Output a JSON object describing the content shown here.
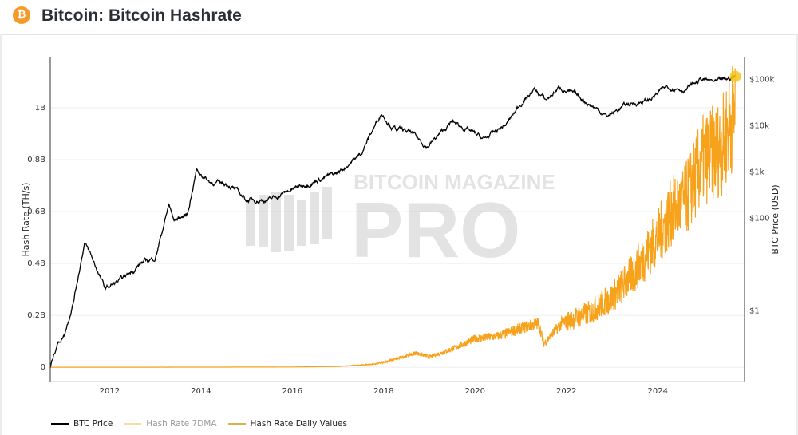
{
  "header": {
    "title": "Bitcoin: Bitcoin Hashrate",
    "logo_icon": "bitcoin-icon",
    "logo_color": "#f39a2b"
  },
  "watermark": {
    "line1": "BITCOIN MAGAZINE",
    "line2": "PRO"
  },
  "chart_data": {
    "type": "line",
    "title": "Bitcoin: Bitcoin Hashrate",
    "xlabel": "",
    "ylabel_left": "Hash Rate (TH/s)",
    "ylabel_right": "BTC Price (USD)",
    "x_ticks": [
      "2012",
      "2014",
      "2016",
      "2018",
      "2020",
      "2022",
      "2024"
    ],
    "x_range": [
      2010.7,
      2025.9
    ],
    "y_left_ticks": [
      "0",
      "0.2B",
      "0.4B",
      "0.6B",
      "0.8B",
      "1B"
    ],
    "y_left_tick_values": [
      0,
      200000000,
      400000000,
      600000000,
      800000000,
      1000000000
    ],
    "y_left_range": [
      -55000000,
      1194000000
    ],
    "y_right_scale": "log",
    "y_right_ticks": [
      "$1",
      "$100",
      "$1k",
      "$10k",
      "$100k"
    ],
    "y_right_tick_values": [
      1,
      100,
      1000,
      10000,
      100000
    ],
    "y_right_range": [
      0.03,
      295000
    ],
    "grid": true,
    "legend_position": "bottom-left",
    "series": [
      {
        "name": "BTC Price",
        "axis": "right",
        "color": "#000000",
        "x": [
          2010.7,
          2010.85,
          2011.0,
          2011.2,
          2011.45,
          2011.6,
          2011.9,
          2012.3,
          2012.7,
          2013.0,
          2013.3,
          2013.4,
          2013.7,
          2013.9,
          2014.2,
          2014.6,
          2015.0,
          2015.5,
          2016.0,
          2016.5,
          2017.0,
          2017.5,
          2017.95,
          2018.2,
          2018.6,
          2018.95,
          2019.5,
          2019.9,
          2020.2,
          2020.7,
          2021.0,
          2021.3,
          2021.55,
          2021.85,
          2022.3,
          2022.9,
          2023.3,
          2023.8,
          2024.2,
          2024.6,
          2024.95,
          2025.3,
          2025.7
        ],
        "values": [
          0.06,
          0.2,
          0.3,
          1.5,
          30,
          15,
          3,
          5,
          11,
          14,
          200,
          90,
          120,
          1100,
          600,
          550,
          250,
          250,
          420,
          650,
          950,
          2500,
          19000,
          9000,
          7000,
          3500,
          12000,
          7500,
          5000,
          11000,
          30000,
          60000,
          35000,
          67000,
          40000,
          16000,
          28000,
          35000,
          70000,
          60000,
          100000,
          85000,
          115000
        ]
      },
      {
        "name": "Hash Rate 7DMA",
        "axis": "left",
        "color": "#f5dfa0",
        "x": [],
        "values": []
      },
      {
        "name": "Hash Rate Daily Values",
        "axis": "left",
        "color": "#f7a21b",
        "x": [
          2010.7,
          2014.0,
          2016.0,
          2017.0,
          2017.8,
          2018.2,
          2018.7,
          2019.0,
          2019.5,
          2020.0,
          2020.5,
          2021.0,
          2021.4,
          2021.5,
          2021.9,
          2022.5,
          2023.0,
          2023.5,
          2024.0,
          2024.3,
          2024.6,
          2025.0,
          2025.4,
          2025.7
        ],
        "values": [
          0,
          300000,
          1000000,
          3000000,
          12000000,
          28000000,
          55000000,
          40000000,
          70000000,
          110000000,
          120000000,
          150000000,
          170000000,
          90000000,
          170000000,
          210000000,
          270000000,
          370000000,
          500000000,
          600000000,
          640000000,
          800000000,
          850000000,
          1000000000
        ]
      }
    ]
  }
}
